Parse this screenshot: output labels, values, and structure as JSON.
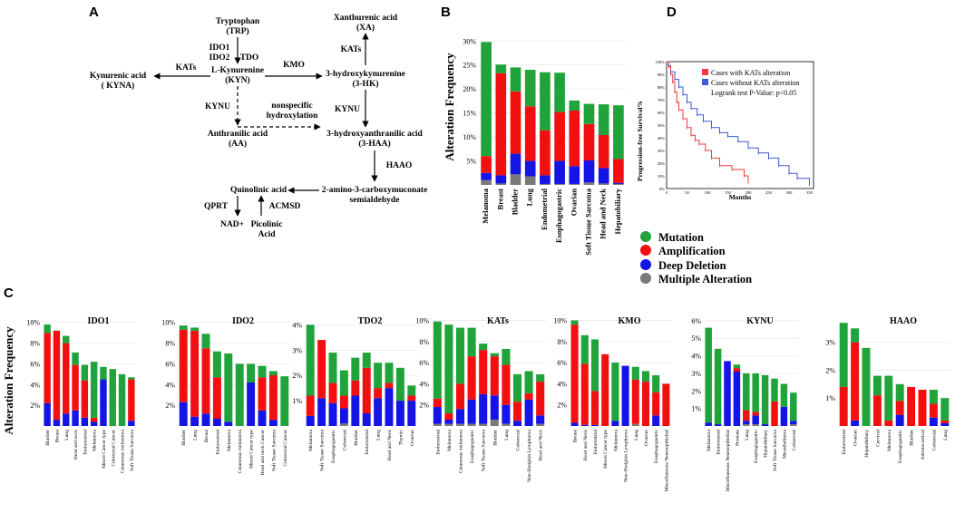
{
  "panels": {
    "a": "A",
    "b": "B",
    "c": "C",
    "d": "D"
  },
  "colors": {
    "mutation": "#1fa33a",
    "amplification": "#f20f0f",
    "deep_deletion": "#1414e6",
    "multiple": "#7a7a7a",
    "km_with": "#f23a3a",
    "km_without": "#3a5ad6"
  },
  "pathway": {
    "trp": "Tryptophan",
    "trp_abbr": "(TRP)",
    "enz_ido1": "IDO1",
    "enz_ido2": "IDO2",
    "enz_tdo": "TDO",
    "kyn": "L-Kynurenine",
    "kyn_abbr": "(KYN)",
    "kats1": "KATs",
    "kyna": "Kynurenic acid",
    "kyna_abbr": "( KYNA)",
    "kmo": "KMO",
    "hk": "3-hydroxykynurenine",
    "hk_abbr": "(3-HK)",
    "kats2": "KATs",
    "xa": "Xanthurenic acid",
    "xa_abbr": "(XA)",
    "kynu1": "KYNU",
    "kynu2": "KYNU",
    "nonspec1": "nonspecific",
    "nonspec2": "hydroxylation",
    "aa": "Anthranilic acid",
    "aa_abbr": "(AA)",
    "haa": "3-hydroxyanthranilic acid",
    "haa_abbr": "(3-HAA)",
    "haao": "HAAO",
    "amino1": "2-amino-3-carboxymuconate",
    "amino2": "semialdehyde",
    "quin": "Quinolinic acid",
    "qprt": "QPRT",
    "acmsd": "ACMSD",
    "nad": "NAD+",
    "pic1": "Picolinic",
    "pic2": "Acid"
  },
  "legend": [
    "Mutation",
    "Amplification",
    "Deep Deletion",
    "Multiple Alteration"
  ],
  "km": {
    "legend_with": "Cases with KATs alteration",
    "legend_without": "Cases without KATs alteration",
    "logrank": "Logrank test P-Value: p<0.05",
    "ylabel": "Progression-free Survival%",
    "xlabel": "Months",
    "yticks": [
      "100%",
      "90%",
      "80%",
      "70%",
      "60%",
      "50%",
      "40%",
      "30%",
      "20%",
      "10%",
      "0%"
    ],
    "xticks": [
      "0",
      "50",
      "100",
      "150",
      "200",
      "250",
      "300",
      "350"
    ],
    "curve_with": [
      [
        0,
        100
      ],
      [
        5,
        96
      ],
      [
        10,
        90
      ],
      [
        15,
        84
      ],
      [
        20,
        76
      ],
      [
        25,
        68
      ],
      [
        30,
        62
      ],
      [
        40,
        55
      ],
      [
        50,
        48
      ],
      [
        60,
        42
      ],
      [
        70,
        38
      ],
      [
        80,
        35
      ],
      [
        95,
        30
      ],
      [
        110,
        24
      ],
      [
        130,
        18
      ],
      [
        160,
        15
      ],
      [
        190,
        10
      ],
      [
        200,
        5
      ]
    ],
    "curve_without": [
      [
        0,
        100
      ],
      [
        5,
        97
      ],
      [
        10,
        92
      ],
      [
        20,
        86
      ],
      [
        30,
        80
      ],
      [
        40,
        74
      ],
      [
        50,
        68
      ],
      [
        60,
        63
      ],
      [
        75,
        58
      ],
      [
        90,
        53
      ],
      [
        110,
        48
      ],
      [
        130,
        44
      ],
      [
        150,
        41
      ],
      [
        175,
        37
      ],
      [
        200,
        32
      ],
      [
        225,
        28
      ],
      [
        250,
        24
      ],
      [
        275,
        18
      ],
      [
        300,
        12
      ],
      [
        320,
        8
      ],
      [
        350,
        3
      ]
    ]
  },
  "chart_data": [
    {
      "type": "bar",
      "panel": "B",
      "stacked": true,
      "title": "",
      "ylabel": "Alteration Frequency",
      "xlabel": "",
      "ylim": [
        0,
        31
      ],
      "yticks": [
        "5%",
        "10%",
        "15%",
        "20%",
        "25%",
        "30%"
      ],
      "categories": [
        "Melanoma",
        "Breast",
        "Bladder",
        "Lung",
        "Endometrial",
        "Esophagogastric",
        "Ovarian",
        "Soft Tissue Sarcoma",
        "Head and Neck",
        "Hepatobiliary"
      ],
      "series": [
        {
          "name": "Multiple Alteration",
          "values": [
            1.0,
            0.3,
            2.2,
            1.8,
            0.2,
            0.2,
            0.2,
            0.5,
            0.3,
            0.2
          ]
        },
        {
          "name": "Deep Deletion",
          "values": [
            1.5,
            1.7,
            4.3,
            3.2,
            1.8,
            4.8,
            3.7,
            4.6,
            3.2,
            0.2
          ]
        },
        {
          "name": "Amplification",
          "values": [
            3.5,
            21.3,
            13.0,
            11.4,
            9.4,
            10.2,
            11.6,
            7.6,
            6.9,
            5.0
          ]
        },
        {
          "name": "Mutation",
          "values": [
            23.8,
            1.8,
            5.0,
            7.6,
            12.1,
            8.2,
            2.1,
            4.2,
            6.4,
            11.2
          ]
        }
      ]
    },
    {
      "type": "bar",
      "panel": "C",
      "stacked": true,
      "title": "IDO1",
      "ylabel": "Alteration Frequency",
      "ylim": [
        0,
        10.5
      ],
      "yticks": [
        "2%",
        "4%",
        "6%",
        "8%",
        "10%"
      ],
      "categories": [
        "Bladder",
        "Breast",
        "Lung",
        "Head and neck",
        "Endometrial",
        "Melanoma",
        "Mixed Cancer type",
        "Colorectal Cancer",
        "Cutaneous melanoma",
        "Soft Tissue Sarcoma"
      ],
      "series": [
        {
          "name": "Multiple Alteration",
          "values": [
            0,
            0,
            0,
            0,
            0,
            0,
            0,
            0,
            0,
            0
          ]
        },
        {
          "name": "Deep Deletion",
          "values": [
            2.2,
            0.6,
            1.2,
            1.5,
            0.8,
            0.4,
            4.5,
            0,
            0,
            0.5
          ]
        },
        {
          "name": "Amplification",
          "values": [
            6.8,
            8.6,
            6.8,
            4.4,
            3.6,
            0.4,
            0,
            0,
            0,
            4.0
          ]
        },
        {
          "name": "Mutation",
          "values": [
            0.8,
            0,
            0.7,
            1.2,
            1.5,
            5.4,
            1.2,
            5.5,
            5.0,
            0.2
          ]
        }
      ]
    },
    {
      "type": "bar",
      "panel": "C",
      "stacked": true,
      "title": "IDO2",
      "ylim": [
        0,
        10.5
      ],
      "yticks": [
        "2%",
        "4%",
        "6%",
        "8%",
        "10%"
      ],
      "categories": [
        "Bladder",
        "Lung",
        "Breast",
        "Endometrial",
        "Melanoma",
        "Cutaneous melanoma",
        "Mixed Cancer type",
        "Head and neck Cancer",
        "Soft Tissue Sarcoma",
        "Colorectal Cancer"
      ],
      "series": [
        {
          "name": "Multiple Alteration",
          "values": [
            0,
            0,
            0,
            0,
            0,
            0,
            0,
            0,
            0,
            0
          ]
        },
        {
          "name": "Deep Deletion",
          "values": [
            2.3,
            0.9,
            1.2,
            0.7,
            0.4,
            0,
            4.2,
            1.5,
            0.6,
            0
          ]
        },
        {
          "name": "Amplification",
          "values": [
            7.0,
            8.3,
            6.3,
            4.0,
            0,
            0,
            0,
            3.2,
            4.3,
            0
          ]
        },
        {
          "name": "Mutation",
          "values": [
            0.4,
            0.3,
            1.4,
            2.5,
            6.6,
            6.0,
            1.8,
            1.1,
            0.4,
            4.8
          ]
        }
      ]
    },
    {
      "type": "bar",
      "panel": "C",
      "stacked": true,
      "title": "TDO2",
      "ylim": [
        0,
        4.3
      ],
      "yticks": [
        "1%",
        "2%",
        "3%",
        "4%"
      ],
      "categories": [
        "Melanoma",
        "Soft Tissue Sarcoma",
        "Esophagogastric",
        "Colorectal",
        "Bladder",
        "Endometrial",
        "Lung",
        "Head and Neck",
        "Thymic",
        "Ovarian"
      ],
      "series": [
        {
          "name": "Multiple Alteration",
          "values": [
            0,
            0,
            0,
            0.1,
            0,
            0,
            0,
            0,
            0,
            0
          ]
        },
        {
          "name": "Deep Deletion",
          "values": [
            0.4,
            1.1,
            0.9,
            0.6,
            1.2,
            0.5,
            1.1,
            1.5,
            1.0,
            1.0
          ]
        },
        {
          "name": "Amplification",
          "values": [
            0.8,
            2.3,
            0.8,
            0.5,
            0.6,
            1.8,
            0.4,
            0.2,
            0,
            0.2
          ]
        },
        {
          "name": "Mutation",
          "values": [
            2.8,
            0,
            1.2,
            1.0,
            0.9,
            0.6,
            1.0,
            0.8,
            1.3,
            0.4
          ]
        }
      ]
    },
    {
      "type": "bar",
      "panel": "C",
      "stacked": true,
      "title": "KATs",
      "ylim": [
        0,
        10.3
      ],
      "yticks": [
        "2%",
        "4%",
        "6%",
        "8%",
        "10%"
      ],
      "categories": [
        "Endometrial",
        "Melanoma",
        "Cutaneous melanoma",
        "Esophagogastric",
        "Soft Tissue Sarcoma",
        "Bladder",
        "Lung",
        "Colorectal",
        "Non-Hodgkin Lymphoma",
        "Head and Neck"
      ],
      "series": [
        {
          "name": "Multiple Alteration",
          "values": [
            0.2,
            0.2,
            0.2,
            0.2,
            0.2,
            0.6,
            0.2,
            0,
            0,
            0.2
          ]
        },
        {
          "name": "Deep Deletion",
          "values": [
            1.6,
            0.4,
            1.4,
            2.3,
            2.8,
            2.3,
            1.8,
            0.5,
            2.5,
            0.8
          ]
        },
        {
          "name": "Amplification",
          "values": [
            0.8,
            0.6,
            2.4,
            4.1,
            4.2,
            3.7,
            3.8,
            1.8,
            0.6,
            3.2
          ]
        },
        {
          "name": "Mutation",
          "values": [
            7.3,
            8.4,
            5.3,
            2.7,
            0.6,
            0.3,
            1.5,
            2.6,
            2.1,
            0.7
          ]
        }
      ]
    },
    {
      "type": "bar",
      "panel": "C",
      "stacked": true,
      "title": "KMO",
      "ylim": [
        0,
        10.3
      ],
      "yticks": [
        "2%",
        "4%",
        "6%",
        "8%",
        "10%"
      ],
      "categories": [
        "Breast",
        "Head and Neck",
        "Endometrial",
        "Mixed Cancer type",
        "Melanoma",
        "Non-Hodgkin Lymphoma",
        "Lung",
        "Ovarian",
        "Esophagogastric",
        "Miscellaneous Neuroepithelial"
      ],
      "series": [
        {
          "name": "Multiple Alteration",
          "values": [
            0,
            0,
            0,
            0,
            0,
            0,
            0.2,
            0,
            0,
            0
          ]
        },
        {
          "name": "Deep Deletion",
          "values": [
            0.3,
            0.1,
            0.1,
            0,
            0.5,
            5.7,
            0,
            0,
            1.0,
            0
          ]
        },
        {
          "name": "Amplification",
          "values": [
            9.3,
            5.8,
            3.2,
            6.8,
            0,
            0,
            4.2,
            4.2,
            2.2,
            4.0
          ]
        },
        {
          "name": "Mutation",
          "values": [
            0.4,
            2.7,
            4.9,
            0,
            5.5,
            0,
            1.2,
            1.0,
            1.6,
            0
          ]
        }
      ]
    },
    {
      "type": "bar",
      "panel": "C",
      "stacked": true,
      "title": "KYNU",
      "ylim": [
        0,
        6.2
      ],
      "yticks": [
        "1%",
        "2%",
        "3%",
        "4%",
        "5%",
        "6%"
      ],
      "categories": [
        "Melanoma",
        "Endometrial",
        "Miscellaneous Neuroepithelial",
        "Prostate",
        "Lung",
        "Esophagogastric",
        "Hepatobiliary",
        "Soft Tissue Sarcoma",
        "Mesothelioma",
        "Colorectal"
      ],
      "series": [
        {
          "name": "Multiple Alteration",
          "values": [
            0,
            0,
            0,
            0,
            0.1,
            0.1,
            0,
            0,
            0,
            0.1
          ]
        },
        {
          "name": "Deep Deletion",
          "values": [
            0.2,
            0.1,
            3.7,
            3.1,
            0.2,
            0.5,
            0.1,
            0,
            1.1,
            0.2
          ]
        },
        {
          "name": "Amplification",
          "values": [
            0,
            0,
            0,
            0.2,
            0.6,
            0.2,
            0,
            1.4,
            0,
            0
          ]
        },
        {
          "name": "Mutation",
          "values": [
            5.4,
            4.3,
            0,
            0.2,
            2.1,
            2.2,
            2.8,
            1.3,
            1.3,
            1.6
          ]
        }
      ]
    },
    {
      "type": "bar",
      "panel": "C",
      "stacked": true,
      "title": "HAAO",
      "ylim": [
        0,
        3.9
      ],
      "yticks": [
        "1%",
        "2%",
        "3%"
      ],
      "categories": [
        "Endometrial",
        "Ovarian",
        "Hepatobiliary",
        "Cervical",
        "Melanoma",
        "Esophagogastric",
        "Bladder",
        "Adrenocortical",
        "Colorectal",
        "Lung"
      ],
      "series": [
        {
          "name": "Multiple Alteration",
          "values": [
            0,
            0,
            0,
            0,
            0,
            0,
            0,
            0,
            0,
            0
          ]
        },
        {
          "name": "Deep Deletion",
          "values": [
            0,
            0.2,
            0,
            0,
            0,
            0.4,
            0,
            0,
            0.3,
            0.1
          ]
        },
        {
          "name": "Amplification",
          "values": [
            1.4,
            2.8,
            0,
            1.1,
            0.2,
            0.5,
            1.4,
            1.3,
            0.5,
            0.1
          ]
        },
        {
          "name": "Mutation",
          "values": [
            2.3,
            0.5,
            2.8,
            0.7,
            1.6,
            0.6,
            0,
            0,
            0.5,
            0.8
          ]
        }
      ]
    }
  ]
}
